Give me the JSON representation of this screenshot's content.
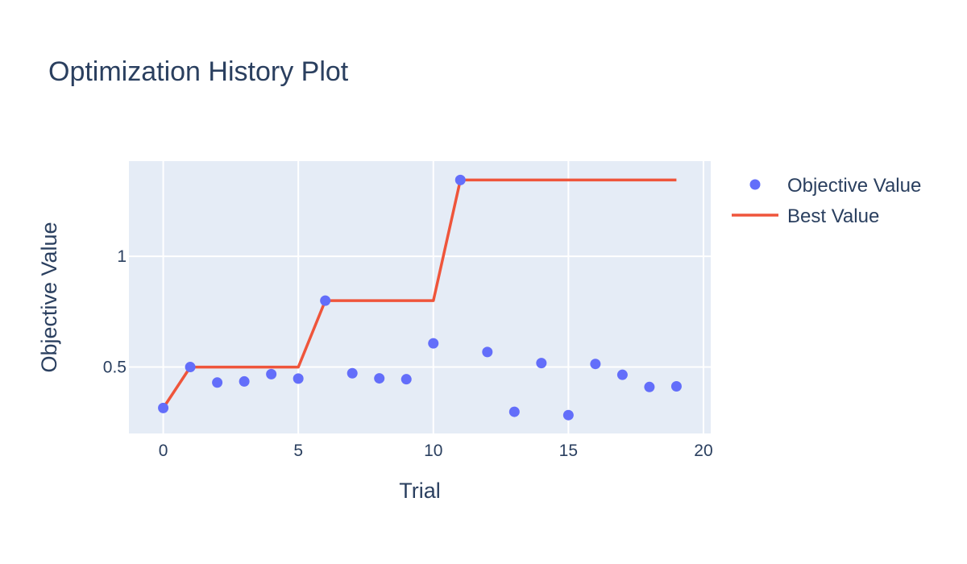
{
  "chart_data": {
    "type": "scatter",
    "title": "Optimization History Plot",
    "xlabel": "Trial",
    "ylabel": "Objective Value",
    "xlim": [
      -1.27,
      20.27
    ],
    "ylim": [
      0.2,
      1.43
    ],
    "xticks": [
      0,
      5,
      10,
      15,
      20
    ],
    "yticks": [
      0.5,
      1
    ],
    "ytick_labels": [
      "0.5",
      "1"
    ],
    "grid": true,
    "legend_position": "top-right, outside plot",
    "series": [
      {
        "name": "Objective Value",
        "kind": "markers",
        "color": "#636efa",
        "x": [
          0,
          1,
          2,
          3,
          4,
          5,
          6,
          7,
          8,
          9,
          10,
          11,
          12,
          13,
          14,
          15,
          16,
          17,
          18,
          19
        ],
        "y": [
          0.315,
          0.5,
          0.43,
          0.435,
          0.468,
          0.448,
          0.8,
          0.472,
          0.449,
          0.445,
          0.607,
          1.345,
          0.568,
          0.298,
          0.518,
          0.283,
          0.514,
          0.465,
          0.41,
          0.413
        ]
      },
      {
        "name": "Best Value",
        "kind": "line",
        "color": "#ef553b",
        "x": [
          0,
          1,
          2,
          3,
          4,
          5,
          6,
          7,
          8,
          9,
          10,
          11,
          12,
          13,
          14,
          15,
          16,
          17,
          18,
          19
        ],
        "y": [
          0.315,
          0.5,
          0.5,
          0.5,
          0.5,
          0.5,
          0.8,
          0.8,
          0.8,
          0.8,
          0.8,
          1.345,
          1.345,
          1.345,
          1.345,
          1.345,
          1.345,
          1.345,
          1.345,
          1.345
        ]
      }
    ]
  }
}
